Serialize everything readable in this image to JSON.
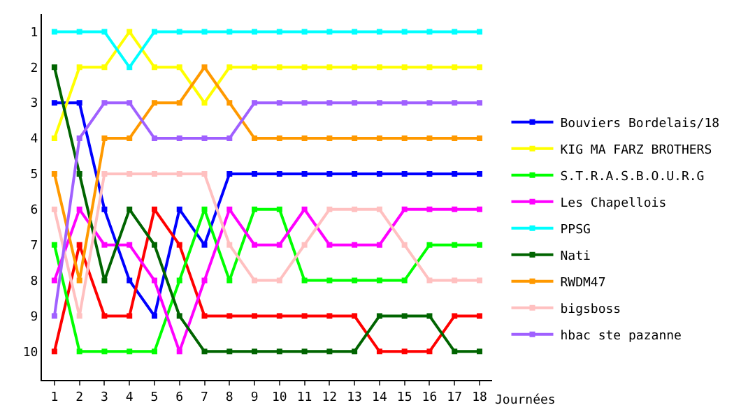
{
  "chart_data": {
    "type": "line",
    "xlabel": "Journées",
    "x": [
      1,
      2,
      3,
      4,
      5,
      6,
      7,
      8,
      9,
      10,
      11,
      12,
      13,
      14,
      15,
      16,
      17,
      18
    ],
    "series": [
      {
        "name": "Bouviers Bordelais/18",
        "color": "#0000ff",
        "values": [
          3,
          3,
          6,
          8,
          9,
          6,
          7,
          5,
          5,
          5,
          5,
          5,
          5,
          5,
          5,
          5,
          5,
          5
        ]
      },
      {
        "color": "#ff0000",
        "values": [
          10,
          7,
          9,
          9,
          6,
          7,
          9,
          9,
          9,
          9,
          9,
          9,
          9,
          10,
          10,
          10,
          9,
          9
        ]
      },
      {
        "name": "KIG MA FARZ BROTHERS",
        "color": "#ffff00",
        "values": [
          4,
          2,
          2,
          1,
          2,
          2,
          3,
          2,
          2,
          2,
          2,
          2,
          2,
          2,
          2,
          2,
          2,
          2
        ]
      },
      {
        "name": "S.T.R.A.S.B.O.U.R.G",
        "color": "#00ff00",
        "values": [
          7,
          10,
          10,
          10,
          10,
          8,
          6,
          8,
          6,
          6,
          8,
          8,
          8,
          8,
          8,
          7,
          7,
          7
        ]
      },
      {
        "name": "Les Chapellois",
        "color": "#ff00ff",
        "values": [
          8,
          6,
          7,
          7,
          8,
          10,
          8,
          6,
          7,
          7,
          6,
          7,
          7,
          7,
          6,
          6,
          6,
          6
        ]
      },
      {
        "name": "PPSG",
        "color": "#00ffff",
        "values": [
          1,
          1,
          1,
          2,
          1,
          1,
          1,
          1,
          1,
          1,
          1,
          1,
          1,
          1,
          1,
          1,
          1,
          1
        ]
      },
      {
        "name": "Nati",
        "color": "#006400",
        "values": [
          2,
          5,
          8,
          6,
          7,
          9,
          10,
          10,
          10,
          10,
          10,
          10,
          10,
          9,
          9,
          9,
          10,
          10
        ]
      },
      {
        "name": "RWDM47",
        "color": "#ff9900",
        "values": [
          5,
          8,
          4,
          4,
          3,
          3,
          2,
          3,
          4,
          4,
          4,
          4,
          4,
          4,
          4,
          4,
          4,
          4
        ]
      },
      {
        "name": "bigsboss",
        "color": "#ffc0c0",
        "values": [
          6,
          9,
          5,
          5,
          5,
          5,
          5,
          7,
          8,
          8,
          7,
          6,
          6,
          6,
          7,
          8,
          8,
          8
        ]
      },
      {
        "name": "hbac ste pazanne",
        "color": "#a060ff",
        "values": [
          9,
          4,
          3,
          3,
          4,
          4,
          4,
          4,
          3,
          3,
          3,
          3,
          3,
          3,
          3,
          3,
          3,
          3
        ]
      }
    ],
    "xlim": [
      0.5,
      18.5
    ],
    "xticks": [
      1,
      2,
      3,
      4,
      5,
      6,
      7,
      8,
      9,
      10,
      11,
      12,
      13,
      14,
      15,
      16,
      17,
      18
    ],
    "ylim": [
      10.8,
      0.5
    ],
    "yticks": [
      1,
      2,
      3,
      4,
      5,
      6,
      7,
      8,
      9,
      10
    ],
    "legend": "right",
    "marker": "square",
    "line_style": "solid"
  }
}
